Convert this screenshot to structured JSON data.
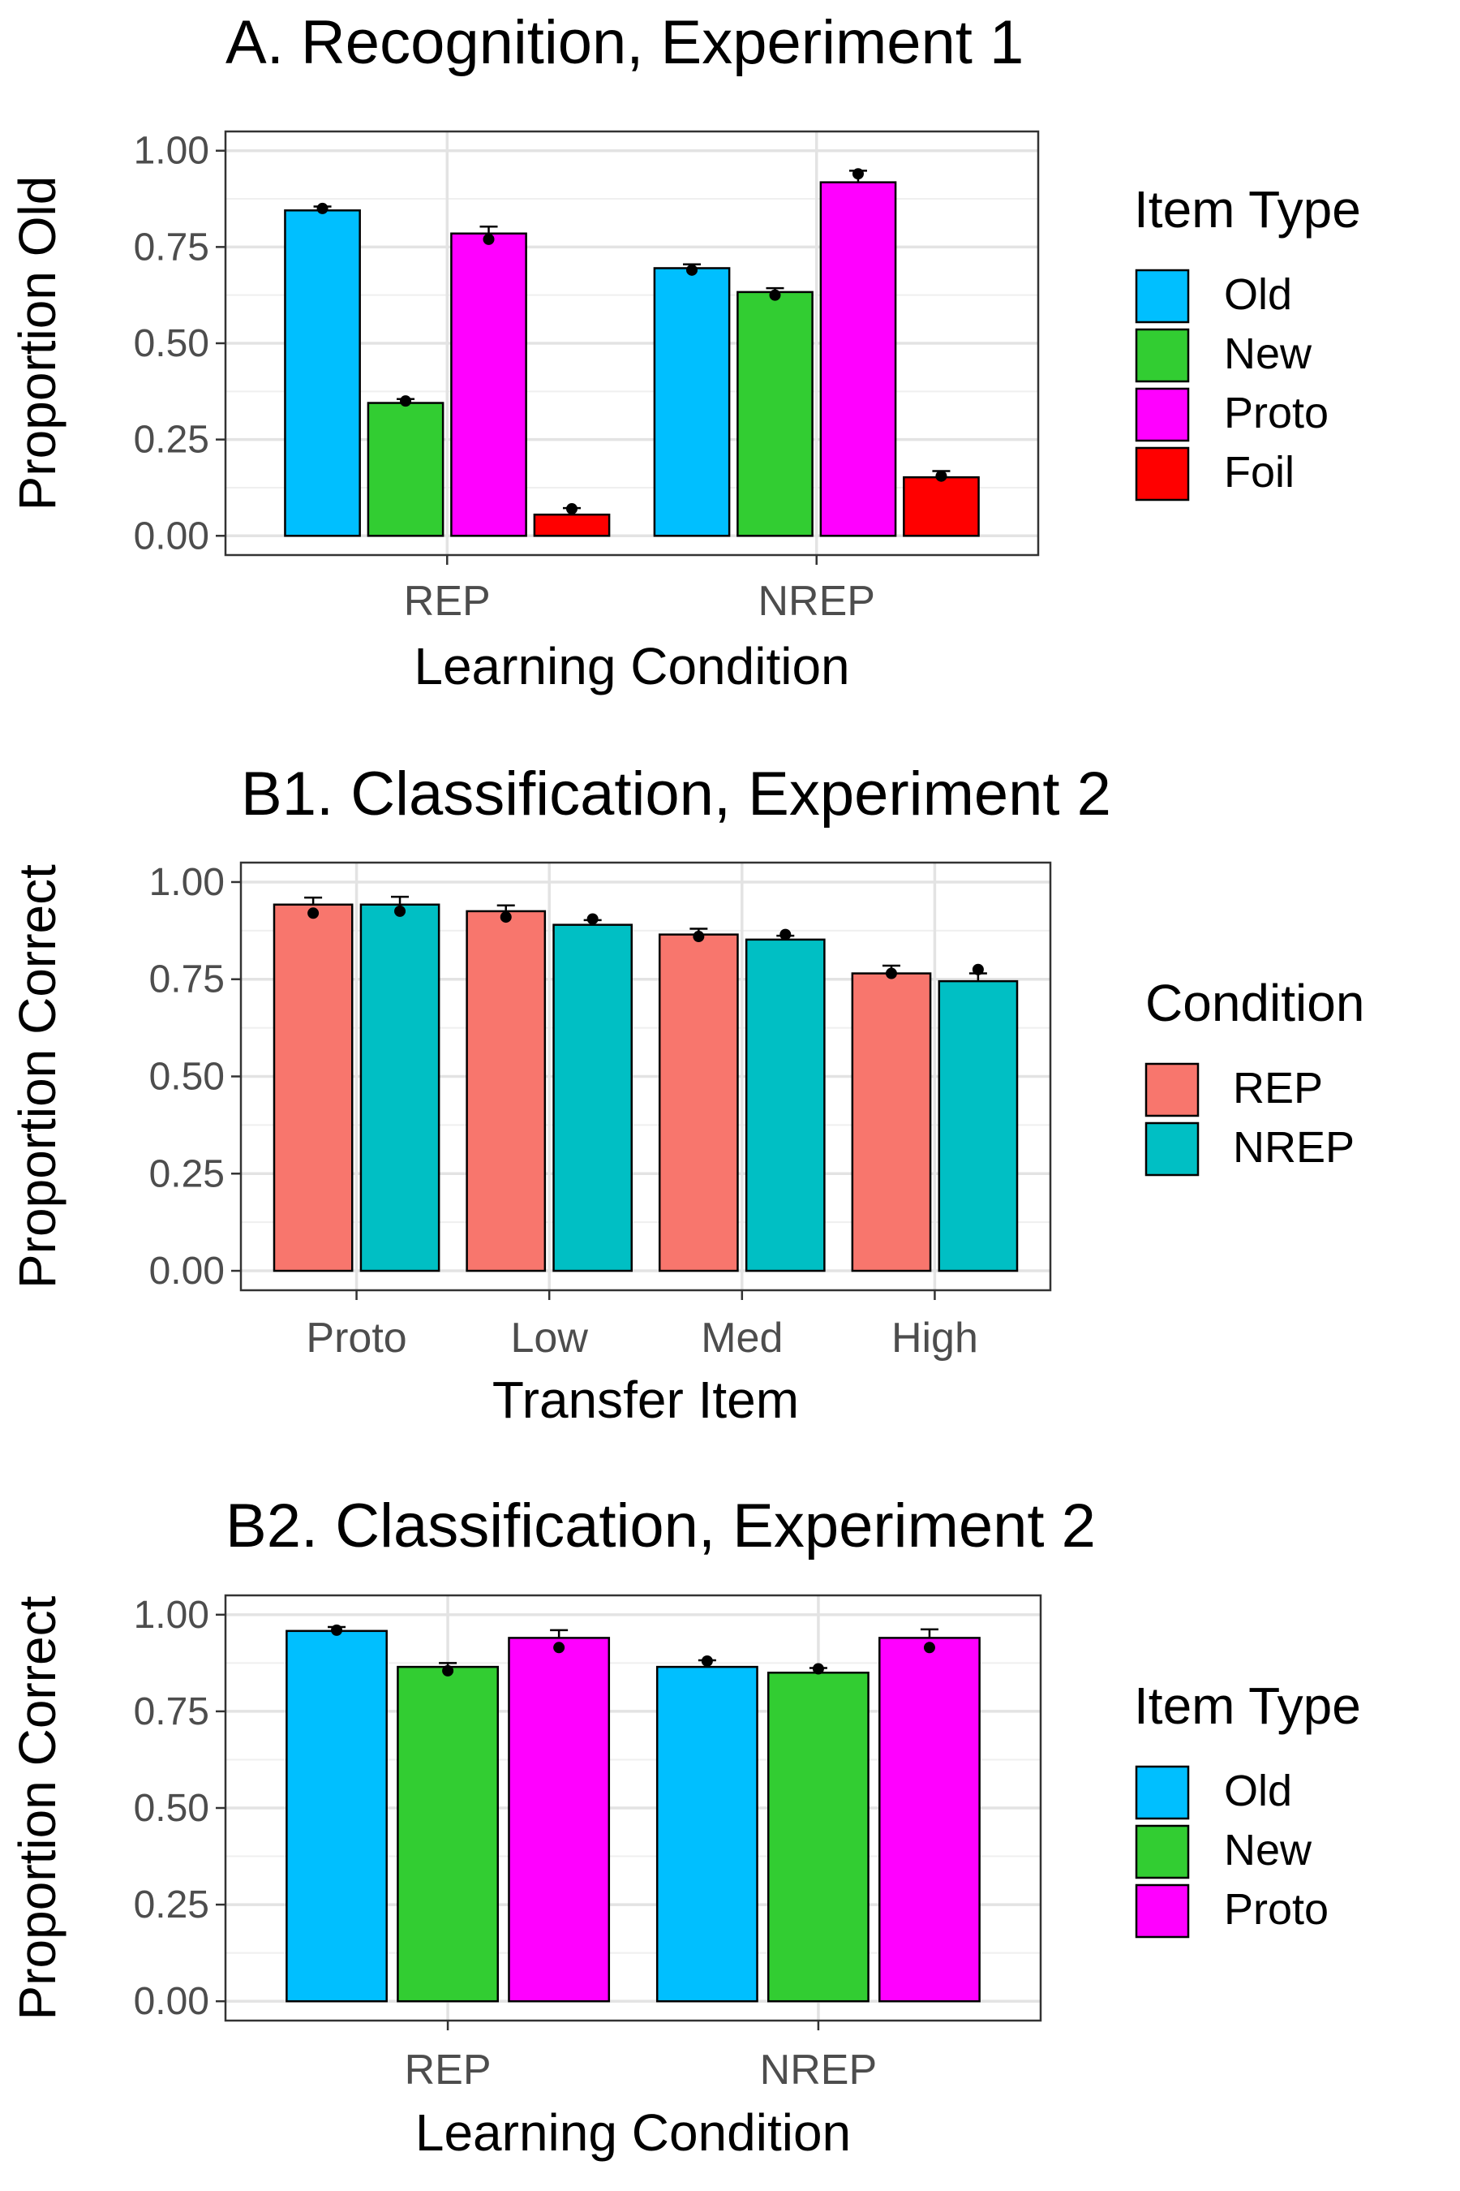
{
  "chart_data": [
    {
      "type": "bar",
      "title": "A. Recognition, Experiment 1",
      "xlabel": "Learning Condition",
      "ylabel": "Proportion Old",
      "ylim": [
        0,
        1
      ],
      "yticks": [
        "0.00",
        "0.25",
        "0.50",
        "0.75",
        "1.00"
      ],
      "categories": [
        "REP",
        "NREP"
      ],
      "legend_title": "Item Type",
      "legend_position": "right",
      "grid": true,
      "series": [
        {
          "name": "Old",
          "color": "#00BFFF",
          "values": [
            0.845,
            0.695
          ],
          "points": [
            0.85,
            0.69
          ],
          "err_hi": [
            0.855,
            0.705
          ]
        },
        {
          "name": "New",
          "color": "#32CD32",
          "values": [
            0.345,
            0.633
          ],
          "points": [
            0.35,
            0.625
          ],
          "err_hi": [
            0.355,
            0.643
          ]
        },
        {
          "name": "Proto",
          "color": "#FF00FF",
          "values": [
            0.785,
            0.918
          ],
          "points": [
            0.77,
            0.94
          ],
          "err_hi": [
            0.803,
            0.948
          ]
        },
        {
          "name": "Foil",
          "color": "#FF0000",
          "values": [
            0.055,
            0.152
          ],
          "points": [
            0.07,
            0.155
          ],
          "err_hi": [
            0.072,
            0.168
          ]
        }
      ]
    },
    {
      "type": "bar",
      "title": "B1. Classification, Experiment 2",
      "xlabel": "Transfer Item",
      "ylabel": "Proportion Correct",
      "ylim": [
        0,
        1
      ],
      "yticks": [
        "0.00",
        "0.25",
        "0.50",
        "0.75",
        "1.00"
      ],
      "categories": [
        "Proto",
        "Low",
        "Med",
        "High"
      ],
      "legend_title": "Condition",
      "legend_position": "right",
      "grid": true,
      "series": [
        {
          "name": "REP",
          "color": "#F8766D",
          "values": [
            0.942,
            0.925,
            0.865,
            0.765
          ],
          "points": [
            0.92,
            0.91,
            0.86,
            0.765
          ],
          "err_hi": [
            0.96,
            0.94,
            0.88,
            0.785
          ]
        },
        {
          "name": "NREP",
          "color": "#00BFC4",
          "values": [
            0.942,
            0.89,
            0.852,
            0.745
          ],
          "points": [
            0.925,
            0.905,
            0.865,
            0.775
          ],
          "err_hi": [
            0.962,
            0.902,
            0.862,
            0.765
          ]
        }
      ]
    },
    {
      "type": "bar",
      "title": "B2. Classification, Experiment 2",
      "xlabel": "Learning Condition",
      "ylabel": "Proportion Correct",
      "ylim": [
        0,
        1
      ],
      "yticks": [
        "0.00",
        "0.25",
        "0.50",
        "0.75",
        "1.00"
      ],
      "categories": [
        "REP",
        "NREP"
      ],
      "legend_title": "Item Type",
      "legend_position": "right",
      "grid": true,
      "series": [
        {
          "name": "Old",
          "color": "#00BFFF",
          "values": [
            0.958,
            0.865
          ],
          "points": [
            0.96,
            0.88
          ],
          "err_hi": [
            0.968,
            0.882
          ]
        },
        {
          "name": "New",
          "color": "#32CD32",
          "values": [
            0.865,
            0.85
          ],
          "points": [
            0.855,
            0.86
          ],
          "err_hi": [
            0.875,
            0.862
          ]
        },
        {
          "name": "Proto",
          "color": "#FF00FF",
          "values": [
            0.94,
            0.94
          ],
          "points": [
            0.915,
            0.915
          ],
          "err_hi": [
            0.96,
            0.962
          ]
        }
      ]
    }
  ]
}
